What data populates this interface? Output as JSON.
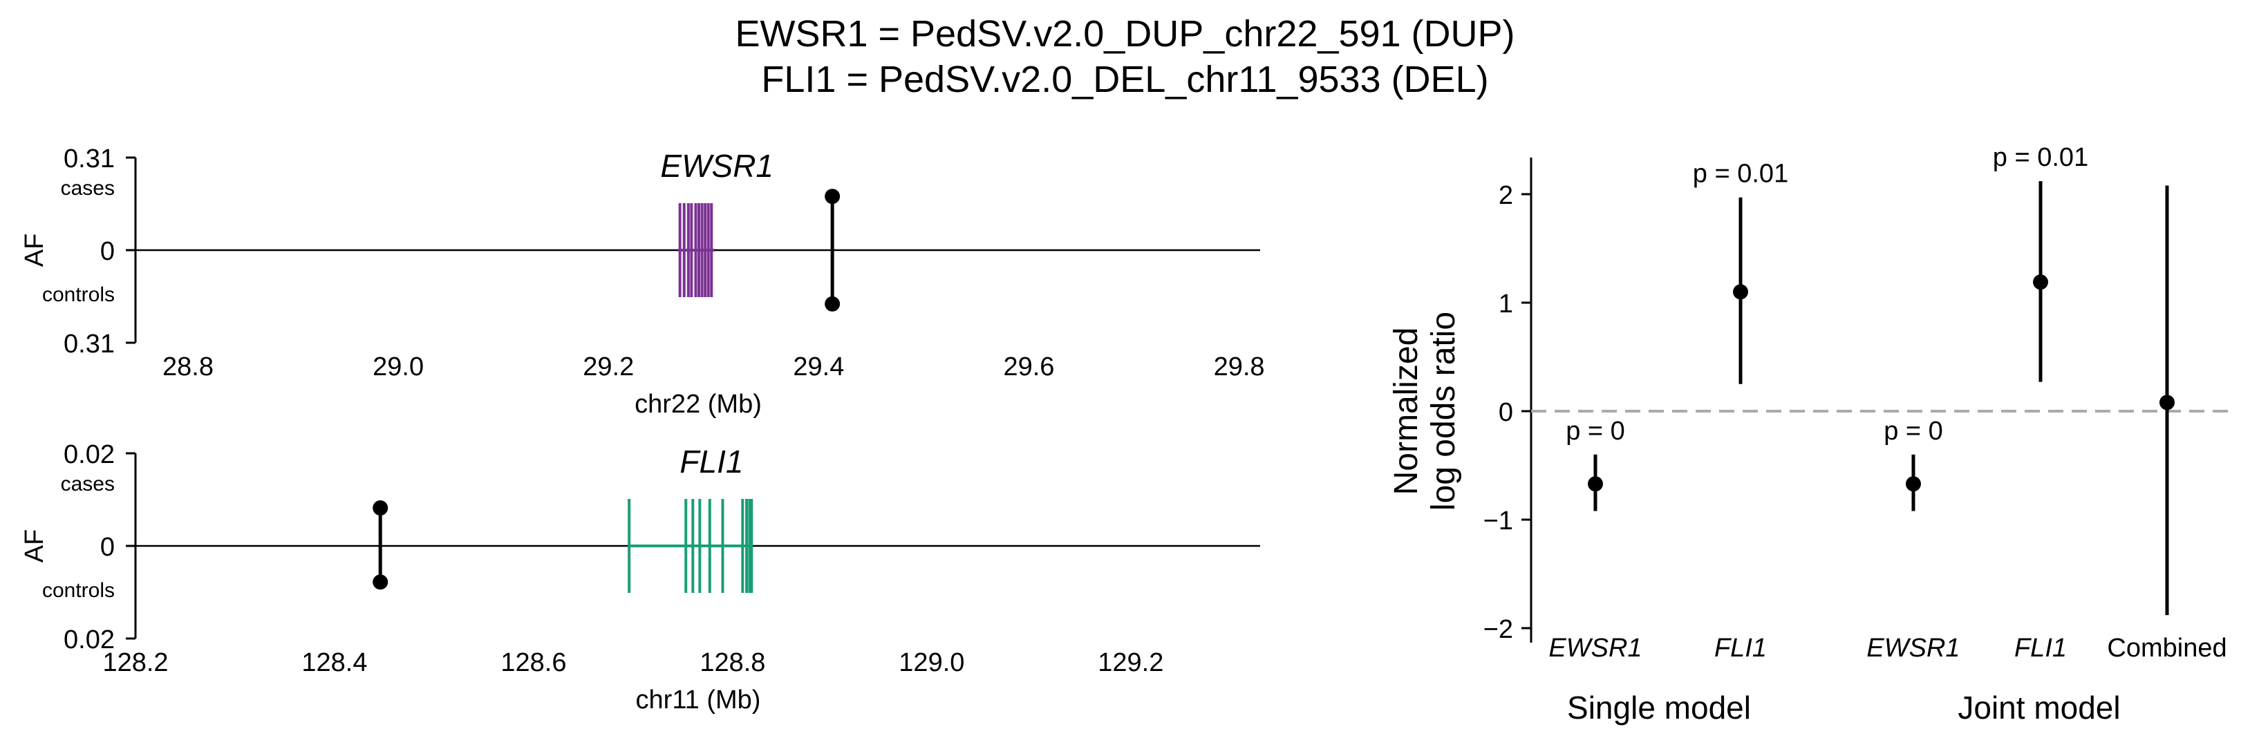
{
  "title": {
    "line1": "EWSR1 = PedSV.v2.0_DUP_chr22_591 (DUP)",
    "line2": "FLI1 = PedSV.v2.0_DEL_chr11_9533 (DEL)"
  },
  "chart_data": [
    {
      "type": "locus",
      "gene": "EWSR1",
      "xlabel": "chr22 (Mb)",
      "ylabel": "AF",
      "y_top_label": "0.31",
      "y_top_sublabel": "cases",
      "y_mid_label": "0",
      "y_bottom_label": "0.31",
      "y_bottom_sublabel": "controls",
      "ylim": [
        -0.31,
        0.31
      ],
      "xlim": [
        28.75,
        29.82
      ],
      "xticks": [
        "28.8",
        "29.0",
        "29.2",
        "29.4",
        "29.6",
        "29.8"
      ],
      "gene_color": "#7b3294",
      "exons_mb": [
        29.268,
        29.272,
        29.276,
        29.279,
        29.283,
        29.286,
        29.289,
        29.292,
        29.295,
        29.298
      ],
      "gene_span_mb": [
        29.266,
        29.301
      ],
      "sv_position_mb": 29.413,
      "af_cases": 0.18,
      "af_controls": 0.18
    },
    {
      "type": "locus",
      "gene": "FLI1",
      "xlabel": "chr11 (Mb)",
      "ylabel": "AF",
      "y_top_label": "0.02",
      "y_top_sublabel": "cases",
      "y_mid_label": "0",
      "y_bottom_label": "0.02",
      "y_bottom_sublabel": "controls",
      "ylim": [
        -0.02,
        0.02
      ],
      "xlim": [
        128.2,
        129.33
      ],
      "xticks": [
        "128.2",
        "128.4",
        "128.6",
        "128.8",
        "129.0",
        "129.2"
      ],
      "gene_color": "#1a9e77",
      "exons_mb": [
        128.696,
        128.753,
        128.76,
        128.767,
        128.777,
        128.79,
        128.81,
        128.814,
        128.817,
        128.819
      ],
      "gene_span_mb": [
        128.696,
        128.82
      ],
      "sv_position_mb": 128.446,
      "af_cases": 0.0082,
      "af_controls": 0.0078
    },
    {
      "type": "forest",
      "ylabel_line1": "Normalized",
      "ylabel_line2": "log odds ratio",
      "ylim": [
        -2.05,
        2.35
      ],
      "yticks": [
        "2",
        "1",
        "0",
        "−1",
        "−2"
      ],
      "reference_line": 0,
      "categories": [
        "EWSR1",
        "FLI1",
        "EWSR1",
        "FLI1",
        "Combined"
      ],
      "italic": [
        true,
        true,
        true,
        true,
        false
      ],
      "group_labels": [
        "Single model",
        "Joint model"
      ],
      "estimates": [
        -0.67,
        1.1,
        -0.67,
        1.19,
        0.08
      ],
      "ci_low": [
        -0.92,
        0.25,
        -0.92,
        0.27,
        -1.88
      ],
      "ci_high": [
        -0.4,
        1.97,
        -0.4,
        2.12,
        2.08
      ],
      "pvalue_labels": [
        "p = 0",
        "p = 0.01",
        "p = 0",
        "p = 0.01",
        ""
      ]
    }
  ]
}
